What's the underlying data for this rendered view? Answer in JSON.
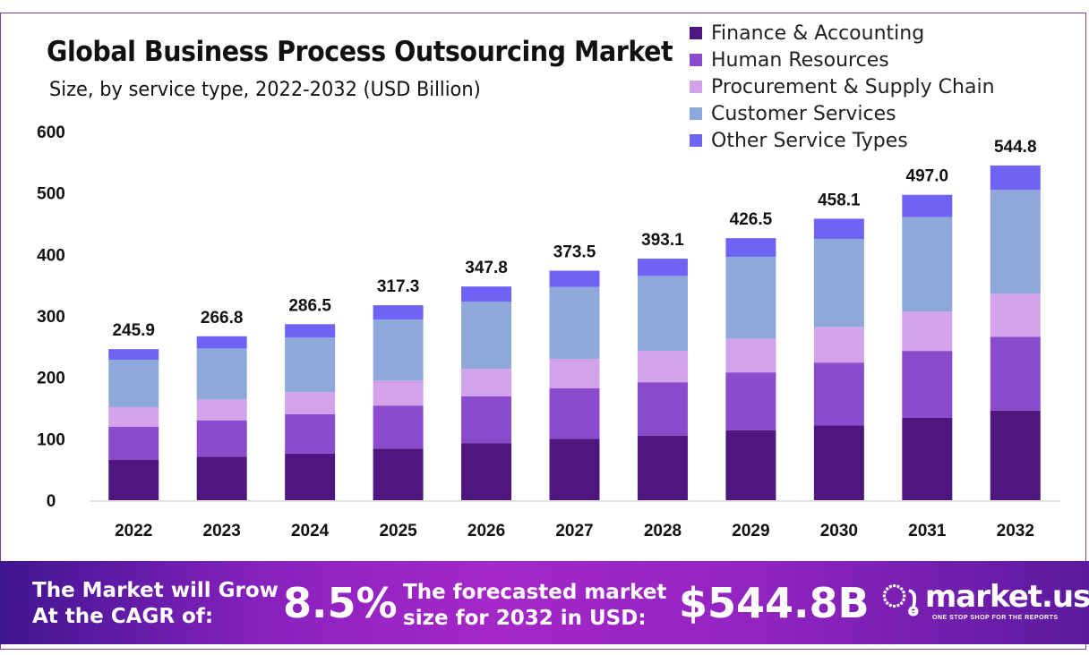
{
  "chart_data": {
    "type": "bar",
    "stacked": true,
    "title": "Global Business Process Outsourcing Market",
    "subtitle": "Size, by service type, 2022-2032 (USD Billion)",
    "xlabel": "",
    "ylabel": "",
    "ylim": [
      0,
      600
    ],
    "yticks": [
      0,
      100,
      200,
      300,
      400,
      500,
      600
    ],
    "categories": [
      "2022",
      "2023",
      "2024",
      "2025",
      "2026",
      "2027",
      "2028",
      "2029",
      "2030",
      "2031",
      "2032"
    ],
    "totals": [
      "245.9",
      "266.8",
      "286.5",
      "317.3",
      "347.8",
      "373.5",
      "393.1",
      "426.5",
      "458.1",
      "497.0",
      "544.8"
    ],
    "legend_position": "top-right",
    "series": [
      {
        "name": "Finance & Accounting",
        "color": "#4e1780",
        "values": [
          65.5,
          71,
          76,
          84,
          93,
          100,
          105,
          114,
          122,
          134,
          146
        ]
      },
      {
        "name": "Human Resources",
        "color": "#8a4bcc",
        "values": [
          54,
          59,
          64,
          70,
          76,
          82,
          87,
          94,
          102,
          109,
          120
        ]
      },
      {
        "name": "Procurement & Supply Chain",
        "color": "#d3a3ea",
        "values": [
          32,
          34,
          36,
          41,
          45,
          48,
          51,
          55,
          58,
          64,
          70
        ]
      },
      {
        "name": "Customer Services",
        "color": "#8ea8da",
        "values": [
          77,
          83,
          89,
          99,
          109,
          117,
          122,
          133,
          143,
          154,
          169
        ]
      },
      {
        "name": "Other Service Types",
        "color": "#6f63f5",
        "values": [
          17.4,
          19.8,
          21.5,
          23.3,
          24.8,
          26.5,
          28.1,
          30.5,
          33.1,
          36.0,
          39.8
        ]
      }
    ]
  },
  "banner": {
    "cagr_label_line1": "The Market will Grow",
    "cagr_label_line2": "At the CAGR of:",
    "cagr_value": "8.5%",
    "forecast_label_line1": "The forecasted market",
    "forecast_label_line2": "size for 2032 in USD:",
    "forecast_value": "$544.8B",
    "logo_name": "market.us",
    "logo_tagline": "ONE STOP SHOP FOR THE REPORTS"
  }
}
